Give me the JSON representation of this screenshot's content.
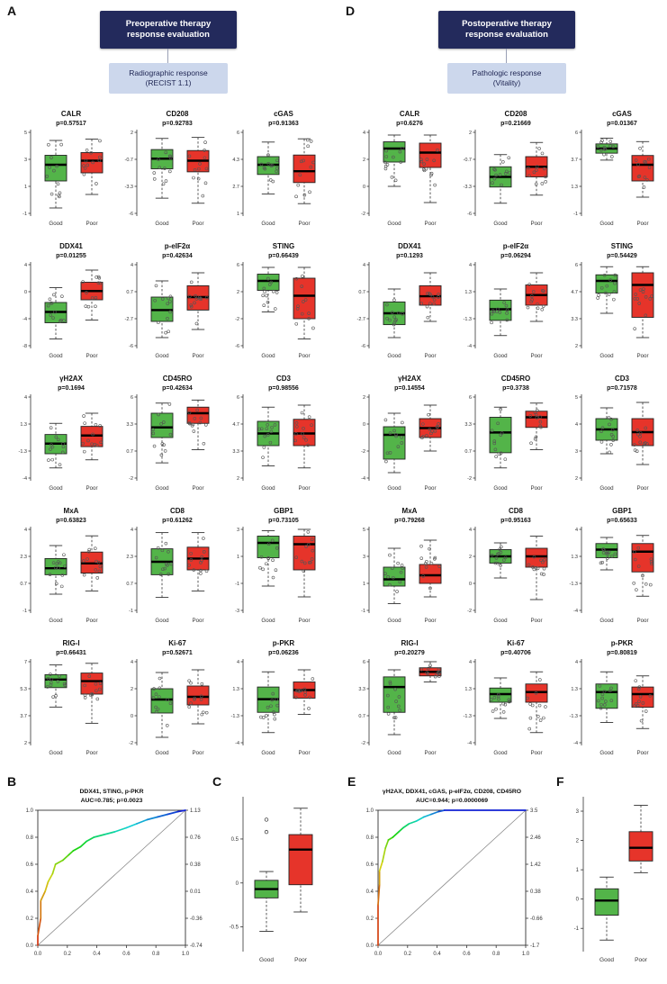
{
  "panel_labels": {
    "A": "A",
    "B": "B",
    "C": "C",
    "D": "D",
    "E": "E",
    "F": "F"
  },
  "flowcharts": {
    "A": {
      "top": "Preoperative therapy\nresponse evaluation",
      "bottom": "Radiographic response\n(RECIST 1.1)"
    },
    "D": {
      "top": "Postoperative therapy\nresponse evaluation",
      "bottom": "Pathologic response\n(Vitality)"
    }
  },
  "categories": [
    "Good",
    "Poor"
  ],
  "colors": {
    "good": "#53b449",
    "poor": "#e6342a",
    "flow_dark": "#232a5c",
    "flow_light": "#ccd7ec",
    "flow_text": "#1d2452"
  },
  "chart_data": [
    {
      "id": "A",
      "type": "boxplot-grid",
      "markers": [
        {
          "name": "CALR",
          "p": "p=0.57517",
          "ylim": [
            -1,
            5
          ],
          "good": [
            -0.6,
            1.4,
            2.6,
            3.3,
            4.4
          ],
          "poor": [
            0.4,
            2.0,
            2.9,
            3.5,
            4.5
          ]
        },
        {
          "name": "CD208",
          "p": "p=0.92783",
          "ylim": [
            -6,
            2
          ],
          "good": [
            -4.5,
            -1.6,
            -0.6,
            0.3,
            1.4
          ],
          "poor": [
            -5.0,
            -1.9,
            -0.8,
            0.2,
            1.5
          ]
        },
        {
          "name": "cGAS",
          "p": "p=0.91363",
          "ylim": [
            1,
            6
          ],
          "good": [
            2.2,
            3.4,
            4.0,
            4.5,
            5.4
          ],
          "poor": [
            1.6,
            2.9,
            3.6,
            4.6,
            5.6
          ]
        },
        {
          "name": "DDX41",
          "p": "p=0.01255",
          "ylim": [
            -8,
            4
          ],
          "good": [
            -7.0,
            -4.6,
            -3.0,
            -1.6,
            0.6
          ],
          "poor": [
            -4.2,
            -1.2,
            0.1,
            1.4,
            3.2
          ]
        },
        {
          "name": "p-eIF2α",
          "p": "p=0.42634",
          "ylim": [
            -6,
            4
          ],
          "good": [
            -5.0,
            -3.0,
            -1.6,
            0.0,
            2.0
          ],
          "poor": [
            -4.0,
            -1.6,
            0.0,
            1.4,
            3.0
          ]
        },
        {
          "name": "STING",
          "p": "p=0.66439",
          "ylim": [
            -6,
            6
          ],
          "good": [
            -1.0,
            2.2,
            3.6,
            4.6,
            5.6
          ],
          "poor": [
            -5.0,
            -2.0,
            1.4,
            4.0,
            5.6
          ]
        },
        {
          "name": "γH2AX",
          "p": "p=0.1694",
          "ylim": [
            -4,
            4
          ],
          "good": [
            -3.0,
            -1.6,
            -0.6,
            0.3,
            1.4
          ],
          "poor": [
            -2.2,
            -0.9,
            0.2,
            1.1,
            2.4
          ]
        },
        {
          "name": "CD45RO",
          "p": "p=0.42634",
          "ylim": [
            -2,
            6
          ],
          "good": [
            -0.5,
            2.0,
            3.0,
            4.4,
            5.4
          ],
          "poor": [
            0.8,
            3.4,
            4.4,
            5.0,
            5.7
          ]
        },
        {
          "name": "CD3",
          "p": "p=0.98556",
          "ylim": [
            2,
            6
          ],
          "good": [
            2.6,
            3.6,
            4.2,
            4.8,
            5.5
          ],
          "poor": [
            2.5,
            3.6,
            4.2,
            4.9,
            5.6
          ]
        },
        {
          "name": "MxA",
          "p": "p=0.63823",
          "ylim": [
            -1,
            4
          ],
          "good": [
            0.0,
            1.2,
            1.6,
            2.2,
            3.0
          ],
          "poor": [
            0.2,
            1.3,
            1.9,
            2.6,
            3.6
          ]
        },
        {
          "name": "CD8",
          "p": "p=0.61262",
          "ylim": [
            -1,
            4
          ],
          "good": [
            -0.2,
            1.2,
            2.0,
            2.8,
            3.8
          ],
          "poor": [
            0.2,
            1.5,
            2.2,
            2.9,
            3.8
          ]
        },
        {
          "name": "GBP1",
          "p": "p=0.73105",
          "ylim": [
            -3,
            3
          ],
          "good": [
            -1.2,
            0.9,
            2.0,
            2.5,
            2.9
          ],
          "poor": [
            -2.0,
            0.0,
            1.9,
            2.5,
            3.0
          ]
        },
        {
          "name": "RIG-I",
          "p": "p=0.66431",
          "ylim": [
            2,
            7
          ],
          "good": [
            4.2,
            5.4,
            5.9,
            6.2,
            6.8
          ],
          "poor": [
            3.2,
            5.0,
            5.8,
            6.3,
            6.9
          ]
        },
        {
          "name": "Ki-67",
          "p": "p=0.52671",
          "ylim": [
            -2,
            4
          ],
          "good": [
            -1.6,
            0.2,
            1.2,
            2.0,
            3.2
          ],
          "poor": [
            -0.6,
            0.8,
            1.4,
            2.2,
            3.4
          ]
        },
        {
          "name": "p-PKR",
          "p": "p=0.06236",
          "ylim": [
            -4,
            4
          ],
          "good": [
            -3.0,
            -1.0,
            0.3,
            1.5,
            3.0
          ],
          "poor": [
            -1.2,
            0.4,
            1.2,
            2.0,
            3.2
          ]
        }
      ]
    },
    {
      "id": "D",
      "type": "boxplot-grid",
      "markers": [
        {
          "name": "CALR",
          "p": "p=0.6276",
          "ylim": [
            -2,
            4
          ],
          "good": [
            0.0,
            1.8,
            2.8,
            3.3,
            3.8
          ],
          "poor": [
            -1.2,
            1.4,
            2.5,
            3.2,
            3.8
          ]
        },
        {
          "name": "CD208",
          "p": "p=0.21669",
          "ylim": [
            -6,
            2
          ],
          "good": [
            -5.0,
            -3.4,
            -2.4,
            -1.4,
            -0.2
          ],
          "poor": [
            -4.2,
            -2.4,
            -1.4,
            -0.4,
            1.0
          ]
        },
        {
          "name": "cGAS",
          "p": "p=0.01367",
          "ylim": [
            -1,
            6
          ],
          "good": [
            3.6,
            4.2,
            4.6,
            5.0,
            5.5
          ],
          "poor": [
            0.4,
            1.8,
            3.2,
            4.0,
            5.2
          ]
        },
        {
          "name": "DDX41",
          "p": "p=0.1293",
          "ylim": [
            -6,
            4
          ],
          "good": [
            -5.0,
            -3.4,
            -2.0,
            -0.6,
            1.0
          ],
          "poor": [
            -3.0,
            -1.0,
            0.1,
            1.4,
            3.0
          ]
        },
        {
          "name": "p-eIF2α",
          "p": "p=0.06294",
          "ylim": [
            -4,
            4
          ],
          "good": [
            -3.0,
            -1.5,
            -0.4,
            0.5,
            1.6
          ],
          "poor": [
            -1.6,
            0.0,
            1.0,
            2.0,
            3.2
          ]
        },
        {
          "name": "STING",
          "p": "p=0.54429",
          "ylim": [
            2,
            6
          ],
          "good": [
            3.6,
            4.6,
            5.2,
            5.5,
            5.9
          ],
          "poor": [
            2.4,
            3.4,
            5.0,
            5.6,
            5.9
          ]
        },
        {
          "name": "γH2AX",
          "p": "p=0.14554",
          "ylim": [
            -4,
            2
          ],
          "good": [
            -3.6,
            -2.6,
            -0.8,
            -0.2,
            0.8
          ],
          "poor": [
            -2.0,
            -1.0,
            -0.3,
            0.4,
            1.4
          ]
        },
        {
          "name": "CD45RO",
          "p": "p=0.3738",
          "ylim": [
            -2,
            6
          ],
          "good": [
            -1.0,
            0.5,
            2.5,
            4.0,
            5.0
          ],
          "poor": [
            0.8,
            3.0,
            4.0,
            4.6,
            5.4
          ]
        },
        {
          "name": "CD3",
          "p": "p=0.71578",
          "ylim": [
            2,
            5
          ],
          "good": [
            2.9,
            3.4,
            3.8,
            4.2,
            4.6
          ],
          "poor": [
            2.5,
            3.2,
            3.7,
            4.2,
            4.8
          ]
        },
        {
          "name": "MxA",
          "p": "p=0.79268",
          "ylim": [
            -1,
            5
          ],
          "good": [
            -0.5,
            0.8,
            1.3,
            2.2,
            3.6
          ],
          "poor": [
            0.0,
            1.0,
            1.6,
            2.4,
            4.2
          ]
        },
        {
          "name": "CD8",
          "p": "p=0.95163",
          "ylim": [
            -2,
            4
          ],
          "good": [
            0.4,
            1.5,
            2.0,
            2.5,
            3.0
          ],
          "poor": [
            -1.2,
            1.2,
            2.0,
            2.6,
            3.5
          ]
        },
        {
          "name": "GBP1",
          "p": "p=0.65633",
          "ylim": [
            -4,
            4
          ],
          "good": [
            0.0,
            1.2,
            2.0,
            2.6,
            3.2
          ],
          "poor": [
            -2.6,
            -0.2,
            1.8,
            2.6,
            3.4
          ]
        },
        {
          "name": "RIG-I",
          "p": "p=0.20279",
          "ylim": [
            -2,
            6
          ],
          "good": [
            -1.2,
            1.0,
            3.5,
            4.5,
            5.2
          ],
          "poor": [
            4.0,
            4.6,
            5.0,
            5.4,
            6.0
          ]
        },
        {
          "name": "Ki-67",
          "p": "p=0.40706",
          "ylim": [
            -4,
            4
          ],
          "good": [
            -1.6,
            0.0,
            0.8,
            1.4,
            2.4
          ],
          "poor": [
            -3.0,
            0.0,
            1.0,
            1.8,
            3.0
          ]
        },
        {
          "name": "p-PKR",
          "p": "p=0.80819",
          "ylim": [
            -4,
            4
          ],
          "good": [
            -2.0,
            -0.6,
            1.0,
            1.8,
            3.0
          ],
          "poor": [
            -2.6,
            -0.5,
            0.8,
            1.5,
            2.6
          ]
        }
      ]
    },
    {
      "id": "B",
      "type": "roc",
      "title": "DDX41, STING, p-PKR",
      "subtitle": "AUC=0.785; p=0.0023",
      "xticks": [
        0,
        0.2,
        0.4,
        0.6,
        0.8,
        1
      ],
      "yticks": [
        0,
        0.2,
        0.4,
        0.6,
        0.8,
        1
      ],
      "right_axis": [
        "1.13",
        "0.76",
        "0.38",
        "0.01",
        "-0.36",
        "-0.74"
      ],
      "points": [
        [
          0,
          0
        ],
        [
          0,
          0.07
        ],
        [
          0.02,
          0.2
        ],
        [
          0.02,
          0.33
        ],
        [
          0.05,
          0.4
        ],
        [
          0.07,
          0.47
        ],
        [
          0.1,
          0.53
        ],
        [
          0.12,
          0.6
        ],
        [
          0.17,
          0.63
        ],
        [
          0.21,
          0.67
        ],
        [
          0.24,
          0.7
        ],
        [
          0.29,
          0.73
        ],
        [
          0.33,
          0.77
        ],
        [
          0.38,
          0.8
        ],
        [
          0.45,
          0.82
        ],
        [
          0.52,
          0.84
        ],
        [
          0.6,
          0.87
        ],
        [
          0.67,
          0.9
        ],
        [
          0.74,
          0.93
        ],
        [
          0.81,
          0.95
        ],
        [
          0.88,
          0.97
        ],
        [
          0.95,
          0.99
        ],
        [
          1,
          1
        ]
      ]
    },
    {
      "id": "C",
      "type": "box",
      "ylim": [
        -0.75,
        0.95
      ],
      "ticks": [
        -0.5,
        0,
        0.5
      ],
      "good": {
        "stats": [
          -0.55,
          -0.17,
          -0.07,
          0.03,
          0.13
        ],
        "outliers": [
          0.72,
          0.58
        ]
      },
      "poor": {
        "stats": [
          -0.33,
          -0.02,
          0.38,
          0.55,
          0.85
        ],
        "outliers": []
      }
    },
    {
      "id": "E",
      "type": "roc",
      "title": "γH2AX, DDX41, cGAS, p-eIF2α, CD208, CD45RO",
      "subtitle": "AUC=0.944; p=0.0000069",
      "xticks": [
        0,
        0.2,
        0.4,
        0.6,
        0.8,
        1
      ],
      "yticks": [
        0,
        0.2,
        0.4,
        0.6,
        0.8,
        1
      ],
      "right_axis": [
        "3.5",
        "2.46",
        "1.42",
        "0.38",
        "-0.66",
        "-1.7"
      ],
      "points": [
        [
          0,
          0
        ],
        [
          0,
          0.3
        ],
        [
          0.01,
          0.45
        ],
        [
          0.01,
          0.55
        ],
        [
          0.03,
          0.62
        ],
        [
          0.05,
          0.72
        ],
        [
          0.07,
          0.78
        ],
        [
          0.1,
          0.8
        ],
        [
          0.14,
          0.84
        ],
        [
          0.17,
          0.87
        ],
        [
          0.21,
          0.9
        ],
        [
          0.26,
          0.92
        ],
        [
          0.31,
          0.95
        ],
        [
          0.36,
          0.97
        ],
        [
          0.41,
          0.99
        ],
        [
          0.45,
          1
        ],
        [
          1,
          1
        ]
      ]
    },
    {
      "id": "F",
      "type": "box",
      "ylim": [
        -1.7,
        3.4
      ],
      "ticks": [
        -1,
        0,
        1,
        2,
        3
      ],
      "good": {
        "stats": [
          -1.4,
          -0.55,
          -0.05,
          0.35,
          0.75
        ],
        "outliers": []
      },
      "poor": {
        "stats": [
          0.9,
          1.3,
          1.75,
          2.3,
          3.2
        ],
        "outliers": []
      }
    }
  ]
}
